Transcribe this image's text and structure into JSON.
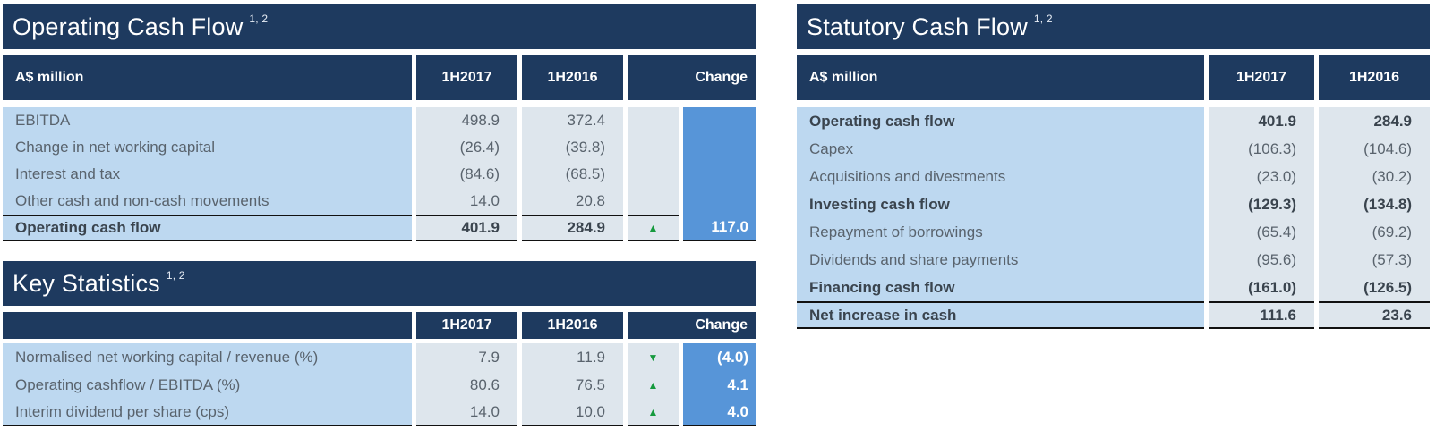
{
  "colors": {
    "navy": "#1E3A5F",
    "label_bg": "#BDD8F0",
    "value_bg": "#DEE6ED",
    "change_bg": "#5795D8",
    "arrow_green": "#169A3E",
    "text_normal": "#59636D",
    "text_bold": "#3A444E"
  },
  "icons": {
    "up_arrow": "▲",
    "down_arrow": "▼"
  },
  "tables": {
    "operating": {
      "title": "Operating Cash Flow",
      "title_superscript": "1, 2",
      "columns": [
        "A$ million",
        "1H2017",
        "1H2016",
        "Change"
      ],
      "rows": [
        {
          "label": "EBITDA",
          "h2017": "498.9",
          "h2016": "372.4",
          "arrow": "",
          "change": "",
          "bold": false
        },
        {
          "label": "Change in net working capital",
          "h2017": "(26.4)",
          "h2016": "(39.8)",
          "arrow": "",
          "change": "",
          "bold": false
        },
        {
          "label": "Interest and tax",
          "h2017": "(84.6)",
          "h2016": "(68.5)",
          "arrow": "",
          "change": "",
          "bold": false
        },
        {
          "label": "Other cash and non-cash movements",
          "h2017": "14.0",
          "h2016": "20.8",
          "arrow": "",
          "change": "",
          "bold": false
        },
        {
          "label": "Operating cash flow",
          "h2017": "401.9",
          "h2016": "284.9",
          "arrow": "up",
          "change": "117.0",
          "bold": true,
          "border_top": true,
          "border_bottom": true
        }
      ]
    },
    "key_statistics": {
      "title": "Key Statistics",
      "title_superscript": "1, 2",
      "columns": [
        "",
        "1H2017",
        "1H2016",
        "Change"
      ],
      "rows": [
        {
          "label": "Normalised net working capital / revenue (%)",
          "h2017": "7.9",
          "h2016": "11.9",
          "arrow": "down",
          "change": "(4.0)",
          "bold": false
        },
        {
          "label": "Operating cashflow / EBITDA (%)",
          "h2017": "80.6",
          "h2016": "76.5",
          "arrow": "up",
          "change": "4.1",
          "bold": false
        },
        {
          "label": "Interim dividend per share (cps)",
          "h2017": "14.0",
          "h2016": "10.0",
          "arrow": "up",
          "change": "4.0",
          "bold": false,
          "border_bottom": true
        }
      ]
    },
    "statutory": {
      "title": "Statutory Cash Flow",
      "title_superscript": "1, 2",
      "columns": [
        "A$ million",
        "1H2017",
        "1H2016"
      ],
      "rows": [
        {
          "label": "Operating cash flow",
          "h2017": "401.9",
          "h2016": "284.9",
          "bold": true
        },
        {
          "label": "Capex",
          "h2017": "(106.3)",
          "h2016": "(104.6)",
          "bold": false
        },
        {
          "label": "Acquisitions and divestments",
          "h2017": "(23.0)",
          "h2016": "(30.2)",
          "bold": false
        },
        {
          "label": "Investing cash flow",
          "h2017": "(129.3)",
          "h2016": "(134.8)",
          "bold": true
        },
        {
          "label": "Repayment of borrowings",
          "h2017": "(65.4)",
          "h2016": "(69.2)",
          "bold": false
        },
        {
          "label": "Dividends and share payments",
          "h2017": "(95.6)",
          "h2016": "(57.3)",
          "bold": false
        },
        {
          "label": "Financing cash flow",
          "h2017": "(161.0)",
          "h2016": "(126.5)",
          "bold": true
        },
        {
          "label": "Net increase in cash",
          "h2017": "111.6",
          "h2016": "23.6",
          "bold": true,
          "border_top": true,
          "border_bottom": true
        }
      ]
    }
  }
}
